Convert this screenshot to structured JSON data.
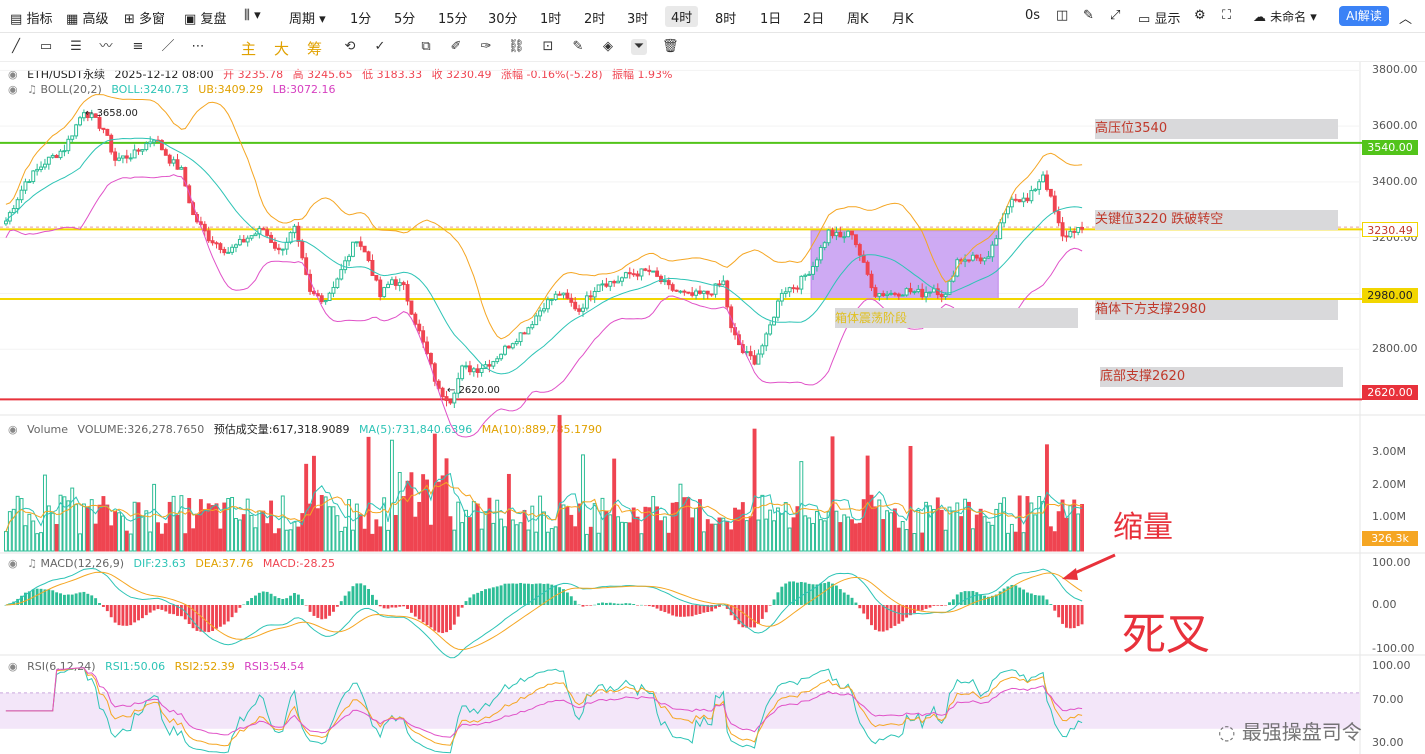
{
  "toolbar": {
    "items": [
      "指标",
      "高级",
      "多窗",
      "复盘",
      "周期",
      "1分",
      "5分",
      "15分",
      "30分",
      "1时",
      "2时",
      "3时",
      "4时",
      "8时",
      "1日",
      "2日",
      "周K",
      "月K"
    ],
    "active": "4时",
    "right": [
      "0s",
      "显示",
      "未命名",
      "AI解读"
    ]
  },
  "drawbar": {
    "chips": [
      "主",
      "大",
      "筹"
    ]
  },
  "legend": {
    "main": [
      "ETH/USDT永续",
      "2025-12-12 08:00",
      "开 3235.78",
      "高 3245.65",
      "低 3183.33",
      "收 3230.49",
      "涨幅 -0.16%(-5.28)",
      "振幅 1.93%"
    ],
    "boll": [
      "BOLL(20,2)",
      "BOLL:3240.73",
      "UB:3409.29",
      "LB:3072.16"
    ],
    "volume": [
      "Volume",
      "VOLUME:326,278.7650",
      "预估成交量:617,318.9089",
      "MA(5):731,840.6396",
      "MA(10):889,785.1790"
    ],
    "macd": [
      "MACD(12,26,9)",
      "DIF:23.63",
      "DEA:37.76",
      "MACD:-28.25"
    ],
    "rsi": [
      "RSI(6,12,24)",
      "RSI1:50.06",
      "RSI2:52.39",
      "RSI3:54.54"
    ]
  },
  "annotations": {
    "high_resist": "高压位3540",
    "key_level": "关键位3220 跌破转空",
    "box_support": "箱体下方支撑2980",
    "bottom_support": "底部支撑2620",
    "box_label": "箱体震荡阶段",
    "shrink_volume": "缩量",
    "dead_cross": "死叉",
    "watermark": "最强操盘司令",
    "high_mark": "3658.00",
    "low_mark": "2620.00"
  },
  "price_boxes": {
    "h3540": "3540.00",
    "current": "3230.49",
    "h2980": "2980.00",
    "h2620": "2620.00",
    "volume": "326.3k"
  },
  "colors": {
    "up": "#2dbd96",
    "down": "#ef4451",
    "green_line": "#52c41a",
    "yellow_line": "#f2d600",
    "red_line": "#e8313b",
    "boll_mid": "#2ec4b6",
    "boll_ub": "#f5a623",
    "boll_lb": "#e052c8"
  },
  "chart_data": {
    "type": "candlestick",
    "symbol": "ETH/USDT永续",
    "timeframe": "4时",
    "y_ticks": [
      3800,
      3600,
      3400,
      3200,
      3000,
      2800
    ],
    "ylim": [
      2600,
      3830
    ],
    "levels": [
      3540,
      3230.49,
      2980,
      2620
    ],
    "anchors": [
      [
        0,
        3260
      ],
      [
        5,
        3400
      ],
      [
        10,
        3470
      ],
      [
        15,
        3520
      ],
      [
        20,
        3658
      ],
      [
        25,
        3590
      ],
      [
        28,
        3480
      ],
      [
        33,
        3500
      ],
      [
        38,
        3560
      ],
      [
        42,
        3480
      ],
      [
        45,
        3440
      ],
      [
        48,
        3280
      ],
      [
        52,
        3200
      ],
      [
        57,
        3150
      ],
      [
        62,
        3200
      ],
      [
        66,
        3230
      ],
      [
        70,
        3150
      ],
      [
        74,
        3230
      ],
      [
        78,
        3000
      ],
      [
        82,
        2980
      ],
      [
        86,
        3080
      ],
      [
        90,
        3200
      ],
      [
        93,
        3120
      ],
      [
        96,
        2990
      ],
      [
        99,
        3050
      ],
      [
        102,
        3020
      ],
      [
        105,
        2900
      ],
      [
        108,
        2780
      ],
      [
        111,
        2650
      ],
      [
        114,
        2620
      ],
      [
        117,
        2730
      ],
      [
        121,
        2730
      ],
      [
        125,
        2760
      ],
      [
        130,
        2830
      ],
      [
        134,
        2880
      ],
      [
        138,
        2960
      ],
      [
        142,
        3000
      ],
      [
        147,
        2940
      ],
      [
        152,
        3040
      ],
      [
        156,
        3040
      ],
      [
        160,
        3070
      ],
      [
        165,
        3080
      ],
      [
        170,
        3020
      ],
      [
        175,
        2990
      ],
      [
        180,
        3000
      ],
      [
        184,
        3040
      ],
      [
        186,
        2870
      ],
      [
        189,
        2790
      ],
      [
        192,
        2760
      ],
      [
        195,
        2840
      ],
      [
        199,
        3010
      ],
      [
        203,
        3030
      ],
      [
        207,
        3100
      ],
      [
        211,
        3220
      ],
      [
        214,
        3200
      ],
      [
        217,
        3220
      ],
      [
        220,
        3100
      ],
      [
        223,
        3000
      ],
      [
        227,
        3000
      ],
      [
        231,
        3010
      ],
      [
        235,
        3000
      ],
      [
        238,
        3020
      ],
      [
        241,
        2990
      ],
      [
        244,
        3120
      ],
      [
        248,
        3130
      ],
      [
        252,
        3120
      ],
      [
        255,
        3240
      ],
      [
        258,
        3350
      ],
      [
        262,
        3330
      ],
      [
        266,
        3430
      ],
      [
        269,
        3290
      ],
      [
        271,
        3200
      ],
      [
        274,
        3230
      ],
      [
        276,
        3230.49
      ]
    ],
    "volume_axis": [
      "3.00M",
      "2.00M",
      "1.00M"
    ],
    "macd_axis": [
      "100.00",
      "0.00",
      "-100.00"
    ],
    "rsi_axis": [
      "100.00",
      "70.00",
      "30.00"
    ]
  }
}
